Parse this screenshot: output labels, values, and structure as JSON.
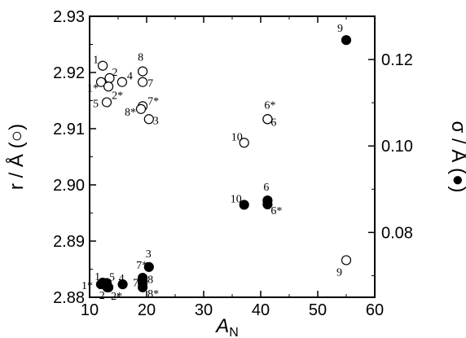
{
  "chart_data": {
    "type": "scatter",
    "xlabel": "A",
    "xlabel_sub": "N",
    "ylabel_left": "r / Å (○)",
    "ylabel_right": "σ / Å (●)",
    "xlim": [
      10,
      60
    ],
    "ylim_left": [
      2.88,
      2.93
    ],
    "ylim_right": [
      0.065,
      0.13
    ],
    "x_ticks": [
      "10",
      "20",
      "30",
      "40",
      "50",
      "60"
    ],
    "y_ticks_left": [
      "2.88",
      "2.89",
      "2.90",
      "2.91",
      "2.92",
      "2.93"
    ],
    "y_ticks_right": [
      "0.08",
      "0.10",
      "0.12"
    ],
    "grid": false,
    "series": [
      {
        "marker": "open-circle",
        "axis": "left",
        "points": [
          {
            "label": "1",
            "x": 12.3,
            "y": 2.9212
          },
          {
            "label": "2",
            "x": 13.5,
            "y": 2.919
          },
          {
            "label": "1*",
            "x": 12.0,
            "y": 2.9183
          },
          {
            "label": "4",
            "x": 15.7,
            "y": 2.9183
          },
          {
            "label": "2*",
            "x": 13.3,
            "y": 2.9175
          },
          {
            "label": "5",
            "x": 13.0,
            "y": 2.9147
          },
          {
            "label": "8",
            "x": 19.3,
            "y": 2.9202
          },
          {
            "label": "7",
            "x": 19.3,
            "y": 2.9183
          },
          {
            "label": "7*",
            "x": 19.3,
            "y": 2.914
          },
          {
            "label": "8*",
            "x": 19.0,
            "y": 2.9135
          },
          {
            "label": "3",
            "x": 20.4,
            "y": 2.9117
          },
          {
            "label": "10",
            "x": 37.1,
            "y": 2.9075
          },
          {
            "label": "6*",
            "x": 41.2,
            "y": 2.9117
          },
          {
            "label": "6",
            "x": 41.2,
            "y": 2.9117
          },
          {
            "label": "9",
            "x": 55.0,
            "y": 2.8866
          }
        ]
      },
      {
        "marker": "filled-circle",
        "axis": "right",
        "points": [
          {
            "label": "9",
            "x": 55.0,
            "y": 0.1245
          },
          {
            "label": "10",
            "x": 37.1,
            "y": 0.0864
          },
          {
            "label": "6",
            "x": 41.2,
            "y": 0.0874
          },
          {
            "label": "6*",
            "x": 41.2,
            "y": 0.0865
          },
          {
            "label": "3",
            "x": 20.4,
            "y": 0.072
          },
          {
            "label": "1",
            "x": 12.3,
            "y": 0.0684
          },
          {
            "label": "5",
            "x": 13.0,
            "y": 0.0683
          },
          {
            "label": "1*",
            "x": 12.0,
            "y": 0.068
          },
          {
            "label": "2",
            "x": 13.1,
            "y": 0.0673
          },
          {
            "label": "4",
            "x": 15.8,
            "y": 0.068
          },
          {
            "label": "2*",
            "x": 13.3,
            "y": 0.0673
          },
          {
            "label": "7*",
            "x": 19.3,
            "y": 0.0695
          },
          {
            "label": "7",
            "x": 19.3,
            "y": 0.0687
          },
          {
            "label": "8",
            "x": 19.3,
            "y": 0.0683
          },
          {
            "label": "8*",
            "x": 19.3,
            "y": 0.0673
          }
        ]
      }
    ]
  }
}
